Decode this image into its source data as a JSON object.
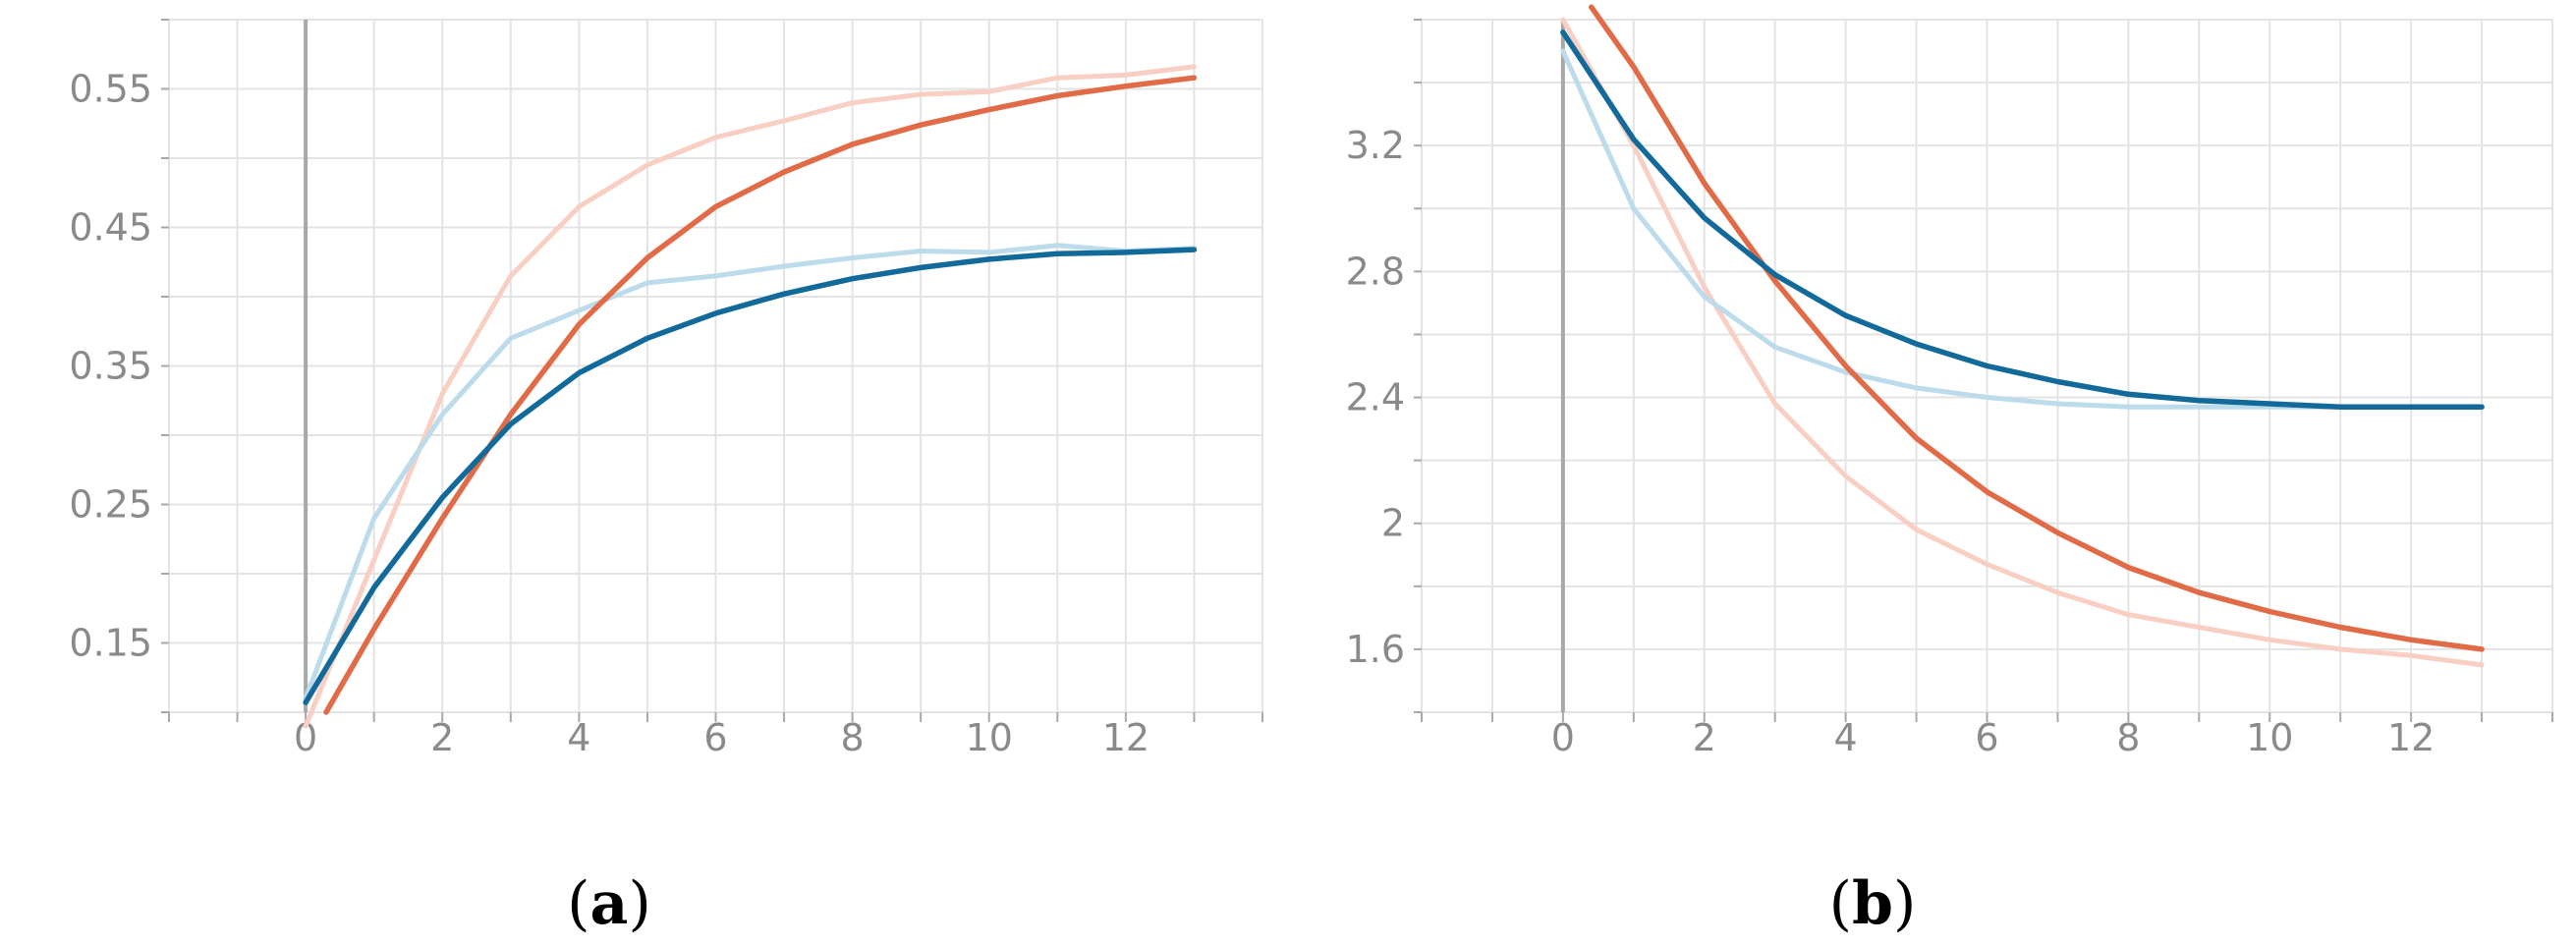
{
  "colors": {
    "orange": "#e16a47",
    "orange_raw": "#f8cfc2",
    "blue": "#126a9a",
    "blue_raw": "#bcdbeb",
    "grid": "#e3e3e3",
    "axis": "#a8a8a8",
    "tick_text": "#8a8a8a"
  },
  "chart_data": [
    {
      "type": "line",
      "panel_label": {
        "open": "(",
        "letter": "a",
        "close": ")"
      },
      "xlim": [
        -2,
        14
      ],
      "ylim": [
        0.1,
        0.6
      ],
      "grid": true,
      "x_ticks": [
        0,
        2,
        4,
        6,
        8,
        10,
        12
      ],
      "y_ticks": [
        0.15,
        0.25,
        0.35,
        0.45,
        0.55
      ],
      "y_tick_labels": [
        "0.15",
        "0.25",
        "0.35",
        "0.45",
        "0.55"
      ],
      "series": [
        {
          "color_key": "orange_raw",
          "x": [
            0,
            1,
            2,
            3,
            4,
            5,
            6,
            7,
            8,
            9,
            10,
            11,
            12,
            13
          ],
          "y": [
            0.09,
            0.21,
            0.33,
            0.415,
            0.465,
            0.495,
            0.515,
            0.527,
            0.54,
            0.546,
            0.548,
            0.558,
            0.56,
            0.566
          ]
        },
        {
          "color_key": "blue_raw",
          "x": [
            0,
            1,
            2,
            3,
            4,
            5,
            6,
            7,
            8,
            9,
            10,
            11,
            12,
            13
          ],
          "y": [
            0.11,
            0.24,
            0.315,
            0.37,
            0.39,
            0.41,
            0.415,
            0.422,
            0.428,
            0.433,
            0.432,
            0.437,
            0.433,
            0.435
          ]
        },
        {
          "color_key": "orange",
          "x": [
            0.3,
            1,
            2,
            3,
            4,
            5,
            6,
            7,
            8,
            9,
            10,
            11,
            12,
            13
          ],
          "y": [
            0.1,
            0.16,
            0.24,
            0.315,
            0.38,
            0.428,
            0.465,
            0.49,
            0.51,
            0.524,
            0.535,
            0.545,
            0.552,
            0.558
          ]
        },
        {
          "color_key": "blue",
          "x": [
            0,
            1,
            2,
            3,
            4,
            5,
            6,
            7,
            8,
            9,
            10,
            11,
            12,
            13
          ],
          "y": [
            0.107,
            0.19,
            0.255,
            0.308,
            0.345,
            0.37,
            0.388,
            0.402,
            0.413,
            0.421,
            0.427,
            0.431,
            0.432,
            0.434
          ]
        }
      ]
    },
    {
      "type": "line",
      "panel_label": {
        "open": "(",
        "letter": "b",
        "close": ")"
      },
      "xlim": [
        -2,
        14
      ],
      "ylim": [
        1.4,
        3.6
      ],
      "grid": true,
      "x_ticks": [
        0,
        2,
        4,
        6,
        8,
        10,
        12
      ],
      "y_ticks": [
        1.6,
        2.0,
        2.4,
        2.8,
        3.2
      ],
      "y_tick_labels": [
        "1.6",
        "2",
        "2.4",
        "2.8",
        "3.2"
      ],
      "series": [
        {
          "color_key": "orange_raw",
          "x": [
            0,
            1,
            2,
            3,
            4,
            5,
            6,
            7,
            8,
            9,
            10,
            11,
            12,
            13
          ],
          "y": [
            3.6,
            3.2,
            2.75,
            2.38,
            2.15,
            1.98,
            1.87,
            1.78,
            1.71,
            1.67,
            1.63,
            1.6,
            1.58,
            1.55
          ]
        },
        {
          "color_key": "blue_raw",
          "x": [
            0,
            1,
            2,
            3,
            4,
            5,
            6,
            7,
            8,
            9,
            10,
            11,
            12,
            13
          ],
          "y": [
            3.5,
            3.0,
            2.72,
            2.56,
            2.48,
            2.43,
            2.4,
            2.38,
            2.37,
            2.37,
            2.37,
            2.37,
            2.37,
            2.37
          ]
        },
        {
          "color_key": "orange",
          "x": [
            0.4,
            1,
            2,
            3,
            4,
            5,
            6,
            7,
            8,
            9,
            10,
            11,
            12,
            13
          ],
          "y": [
            3.64,
            3.45,
            3.08,
            2.77,
            2.5,
            2.27,
            2.1,
            1.97,
            1.86,
            1.78,
            1.72,
            1.67,
            1.63,
            1.6
          ]
        },
        {
          "color_key": "blue",
          "x": [
            0,
            1,
            2,
            3,
            4,
            5,
            6,
            7,
            8,
            9,
            10,
            11,
            12,
            13
          ],
          "y": [
            3.56,
            3.22,
            2.97,
            2.79,
            2.66,
            2.57,
            2.5,
            2.45,
            2.41,
            2.39,
            2.38,
            2.37,
            2.37,
            2.37
          ]
        }
      ]
    }
  ]
}
